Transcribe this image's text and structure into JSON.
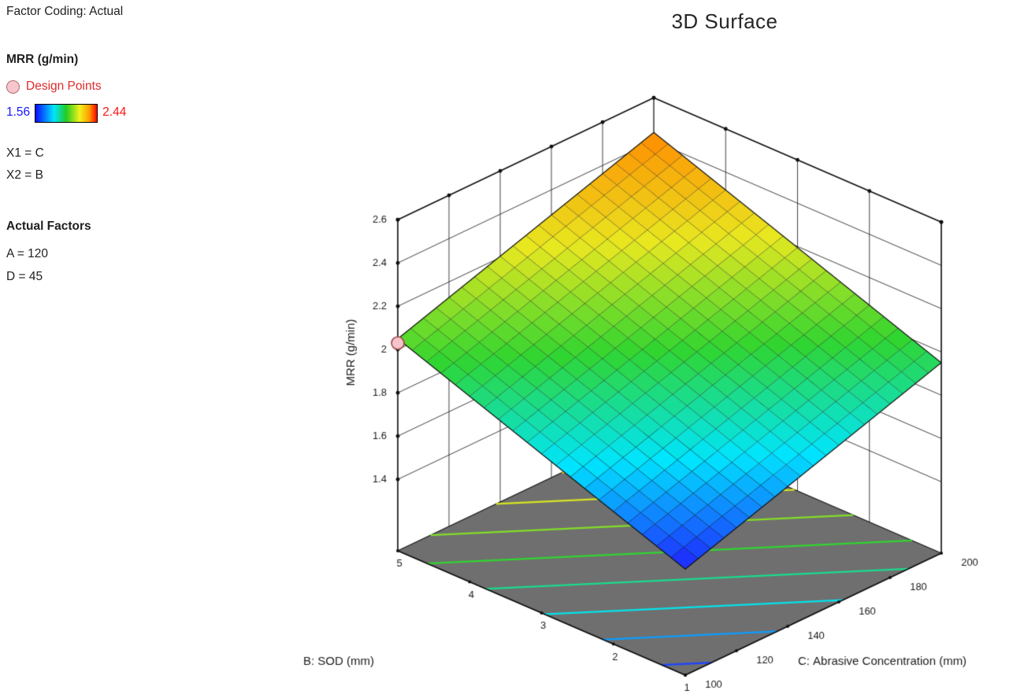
{
  "title": "3D Surface",
  "sidebar": {
    "factor_coding": "Factor Coding: Actual",
    "response_label": "MRR (g/min)",
    "design_points_label": "Design Points",
    "scale_min": "1.56",
    "scale_max": "2.44",
    "x1": "X1 = C",
    "x2": "X2 = B",
    "actual_factors_label": "Actual Factors",
    "factor_a": "A = 120",
    "factor_d": "D = 45"
  },
  "chart_data": {
    "type": "surface3d",
    "title": "3D Surface",
    "x_axis": {
      "label": "C: Abrasive Concentration (mm)",
      "ticks": [
        100,
        120,
        140,
        160,
        180,
        200
      ],
      "range": [
        100,
        200
      ]
    },
    "y_axis": {
      "label": "B: SOD (mm)",
      "ticks": [
        5,
        4,
        3,
        2,
        1
      ],
      "range": [
        1,
        5
      ]
    },
    "z_axis": {
      "label": "MRR (g/min)",
      "ticks": [
        1.4,
        1.6,
        1.8,
        2,
        2.2,
        2.4,
        2.6
      ],
      "range_shown": [
        1.4,
        2.6
      ]
    },
    "color_scale": {
      "min": 1.56,
      "max": 2.44,
      "stops": [
        "#2020ff",
        "#00e5ff",
        "#30d530",
        "#e8e820",
        "#ff8c00"
      ]
    },
    "surface": {
      "model": "bilinear-plane",
      "corner_values": {
        "B5_C100": 2.05,
        "B1_C100": 1.56,
        "B5_C200": 2.44,
        "B1_C200": 1.95
      },
      "grid_divisions": 20
    },
    "floor_contours": {
      "levels": [
        1.6,
        1.7,
        1.8,
        1.9,
        2.0,
        2.1,
        2.2,
        2.3,
        2.4
      ]
    },
    "design_points": [
      {
        "B": 5,
        "C": 100,
        "MRR": 2.03
      }
    ]
  }
}
